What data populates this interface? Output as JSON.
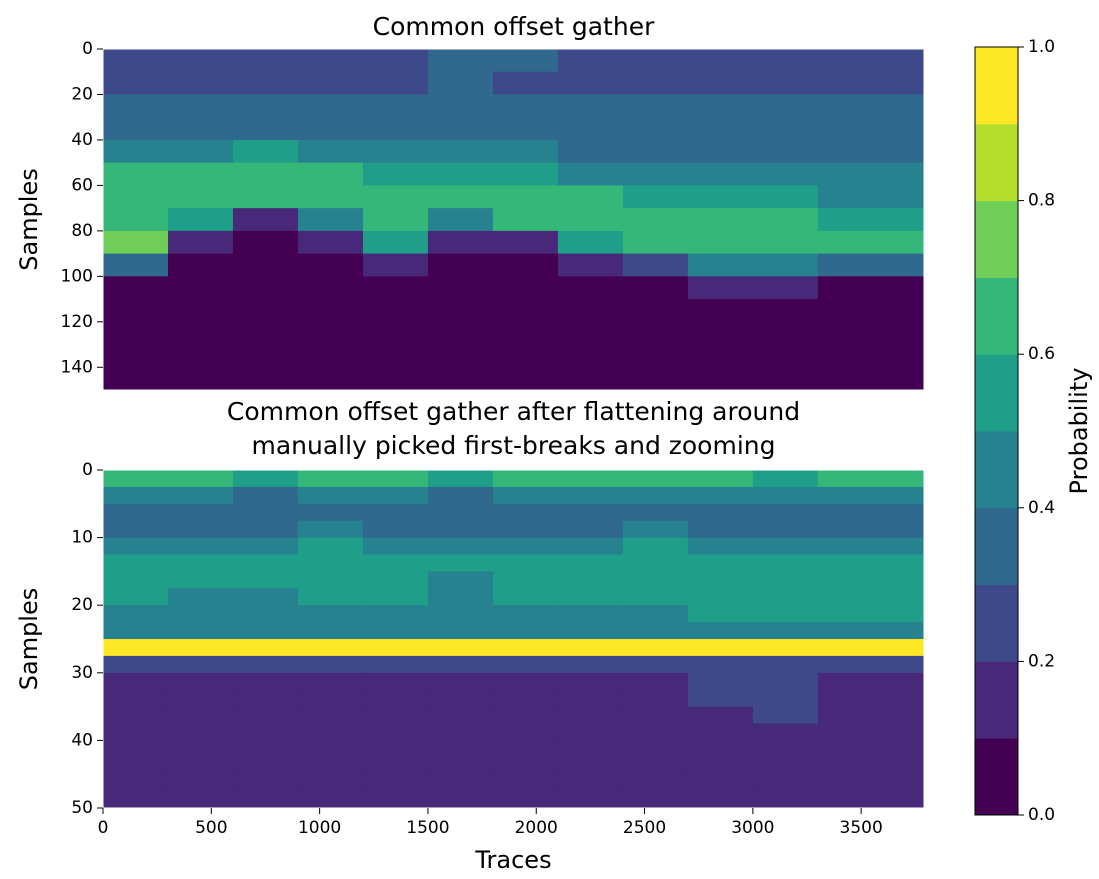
{
  "chart_data": [
    {
      "type": "heatmap",
      "title": [
        "Common offset gather"
      ],
      "ylabel": "Samples",
      "xlim": [
        0,
        3790
      ],
      "ylim": [
        0,
        150
      ],
      "invert_y": true,
      "yticks": [
        0,
        20,
        40,
        60,
        80,
        100,
        120,
        140
      ],
      "xbins": [
        0,
        300,
        600,
        900,
        1200,
        1500,
        1800,
        2100,
        2400,
        2700,
        3000,
        3300,
        3790
      ],
      "ybins": [
        0,
        10,
        20,
        30,
        40,
        50,
        60,
        70,
        80,
        90,
        100,
        110,
        120,
        130,
        140,
        150
      ],
      "values": [
        [
          0.25,
          0.25,
          0.3,
          0.35,
          0.4,
          0.6,
          0.6,
          0.6,
          0.7,
          0.3,
          0.08,
          0.06,
          0.05,
          0.05,
          0.05
        ],
        [
          0.25,
          0.25,
          0.3,
          0.35,
          0.45,
          0.6,
          0.65,
          0.5,
          0.1,
          0.08,
          0.06,
          0.05,
          0.05,
          0.05,
          0.05
        ],
        [
          0.25,
          0.25,
          0.3,
          0.35,
          0.5,
          0.65,
          0.6,
          0.1,
          0.08,
          0.07,
          0.06,
          0.05,
          0.05,
          0.05,
          0.05
        ],
        [
          0.25,
          0.25,
          0.3,
          0.35,
          0.45,
          0.6,
          0.65,
          0.4,
          0.1,
          0.08,
          0.06,
          0.05,
          0.05,
          0.05,
          0.05
        ],
        [
          0.25,
          0.25,
          0.3,
          0.35,
          0.4,
          0.55,
          0.6,
          0.6,
          0.5,
          0.1,
          0.07,
          0.05,
          0.05,
          0.05,
          0.05
        ],
        [
          0.3,
          0.3,
          0.3,
          0.35,
          0.4,
          0.55,
          0.65,
          0.45,
          0.1,
          0.08,
          0.06,
          0.05,
          0.05,
          0.05,
          0.05
        ],
        [
          0.3,
          0.25,
          0.3,
          0.35,
          0.4,
          0.5,
          0.6,
          0.6,
          0.15,
          0.08,
          0.06,
          0.05,
          0.05,
          0.05,
          0.05
        ],
        [
          0.25,
          0.25,
          0.3,
          0.35,
          0.35,
          0.45,
          0.6,
          0.6,
          0.55,
          0.1,
          0.07,
          0.05,
          0.05,
          0.05,
          0.05
        ],
        [
          0.25,
          0.25,
          0.3,
          0.3,
          0.35,
          0.45,
          0.55,
          0.6,
          0.6,
          0.2,
          0.08,
          0.06,
          0.05,
          0.05,
          0.05
        ],
        [
          0.25,
          0.25,
          0.3,
          0.3,
          0.35,
          0.4,
          0.5,
          0.6,
          0.6,
          0.45,
          0.1,
          0.06,
          0.05,
          0.05,
          0.05
        ],
        [
          0.25,
          0.25,
          0.3,
          0.3,
          0.35,
          0.4,
          0.5,
          0.6,
          0.6,
          0.45,
          0.1,
          0.06,
          0.05,
          0.05,
          0.05
        ],
        [
          0.25,
          0.25,
          0.3,
          0.3,
          0.35,
          0.4,
          0.45,
          0.55,
          0.6,
          0.35,
          0.08,
          0.06,
          0.05,
          0.05,
          0.05
        ]
      ]
    },
    {
      "type": "heatmap",
      "title": [
        "Common offset gather after flattening around",
        "manually picked first-breaks and zooming"
      ],
      "ylabel": "Samples",
      "xlabel": "Traces",
      "xlim": [
        0,
        3790
      ],
      "ylim": [
        0,
        50
      ],
      "invert_y": true,
      "xticks": [
        0,
        500,
        1000,
        1500,
        2000,
        2500,
        3000,
        3500
      ],
      "yticks": [
        0,
        10,
        20,
        30,
        40,
        50
      ],
      "xbins": [
        0,
        300,
        600,
        900,
        1200,
        1500,
        1800,
        2100,
        2400,
        2700,
        3000,
        3300,
        3790
      ],
      "ybins": [
        0,
        2.5,
        5,
        7.5,
        10,
        12.5,
        15,
        17.5,
        20,
        22.5,
        25,
        27.5,
        30,
        32.5,
        35,
        37.5,
        40,
        42.5,
        45,
        47.5,
        50
      ],
      "values": [
        [
          0.65,
          0.4,
          0.35,
          0.35,
          0.45,
          0.5,
          0.5,
          0.5,
          0.45,
          0.45,
          0.95,
          0.2,
          0.18,
          0.15,
          0.15,
          0.12,
          0.12,
          0.1,
          0.1,
          0.1
        ],
        [
          0.6,
          0.4,
          0.35,
          0.35,
          0.45,
          0.5,
          0.5,
          0.45,
          0.45,
          0.45,
          0.95,
          0.2,
          0.18,
          0.15,
          0.15,
          0.12,
          0.12,
          0.1,
          0.1,
          0.1
        ],
        [
          0.55,
          0.35,
          0.35,
          0.35,
          0.45,
          0.5,
          0.5,
          0.45,
          0.45,
          0.45,
          0.95,
          0.2,
          0.18,
          0.15,
          0.15,
          0.12,
          0.12,
          0.1,
          0.1,
          0.1
        ],
        [
          0.6,
          0.4,
          0.35,
          0.4,
          0.5,
          0.5,
          0.5,
          0.5,
          0.45,
          0.45,
          0.95,
          0.2,
          0.18,
          0.15,
          0.15,
          0.12,
          0.12,
          0.1,
          0.1,
          0.1
        ],
        [
          0.6,
          0.4,
          0.35,
          0.35,
          0.45,
          0.5,
          0.5,
          0.5,
          0.45,
          0.45,
          0.95,
          0.2,
          0.18,
          0.15,
          0.15,
          0.12,
          0.12,
          0.1,
          0.1,
          0.1
        ],
        [
          0.55,
          0.35,
          0.35,
          0.35,
          0.45,
          0.5,
          0.45,
          0.45,
          0.45,
          0.45,
          0.95,
          0.2,
          0.18,
          0.15,
          0.15,
          0.12,
          0.12,
          0.1,
          0.1,
          0.1
        ],
        [
          0.6,
          0.4,
          0.35,
          0.35,
          0.45,
          0.5,
          0.5,
          0.5,
          0.45,
          0.45,
          0.95,
          0.2,
          0.18,
          0.15,
          0.15,
          0.12,
          0.12,
          0.1,
          0.1,
          0.1
        ],
        [
          0.65,
          0.4,
          0.35,
          0.35,
          0.45,
          0.5,
          0.5,
          0.5,
          0.45,
          0.45,
          0.95,
          0.2,
          0.18,
          0.15,
          0.15,
          0.12,
          0.12,
          0.1,
          0.1,
          0.1
        ],
        [
          0.6,
          0.4,
          0.35,
          0.4,
          0.5,
          0.5,
          0.5,
          0.5,
          0.45,
          0.45,
          0.95,
          0.2,
          0.18,
          0.15,
          0.15,
          0.12,
          0.12,
          0.1,
          0.1,
          0.1
        ],
        [
          0.6,
          0.4,
          0.35,
          0.35,
          0.45,
          0.5,
          0.5,
          0.5,
          0.5,
          0.45,
          0.95,
          0.25,
          0.25,
          0.22,
          0.18,
          0.15,
          0.12,
          0.1,
          0.1,
          0.1
        ],
        [
          0.55,
          0.4,
          0.35,
          0.35,
          0.45,
          0.5,
          0.5,
          0.5,
          0.5,
          0.45,
          0.95,
          0.25,
          0.25,
          0.22,
          0.2,
          0.15,
          0.12,
          0.12,
          0.1,
          0.1
        ],
        [
          0.6,
          0.4,
          0.35,
          0.35,
          0.45,
          0.5,
          0.5,
          0.5,
          0.5,
          0.45,
          0.95,
          0.2,
          0.18,
          0.15,
          0.15,
          0.12,
          0.12,
          0.1,
          0.1,
          0.1
        ]
      ]
    },
    {
      "type": "colorbar",
      "label": "Probability",
      "levels": [
        0,
        0.1,
        0.2,
        0.3,
        0.4,
        0.5,
        0.6,
        0.7,
        0.8,
        0.9,
        1
      ],
      "colors": [
        "#440154",
        "#482878",
        "#3e4989",
        "#31688e",
        "#26828e",
        "#1f9e89",
        "#35b779",
        "#6ece58",
        "#b5de2b",
        "#fde725"
      ],
      "ylim": [
        0,
        1
      ],
      "yticks": [
        {
          "value": 0,
          "label": "0.0"
        },
        {
          "value": 0.2,
          "label": "0.2"
        },
        {
          "value": 0.4,
          "label": "0.4"
        },
        {
          "value": 0.6,
          "label": "0.6"
        },
        {
          "value": 0.8,
          "label": "0.8"
        },
        {
          "value": 1,
          "label": "1.0"
        }
      ]
    }
  ]
}
